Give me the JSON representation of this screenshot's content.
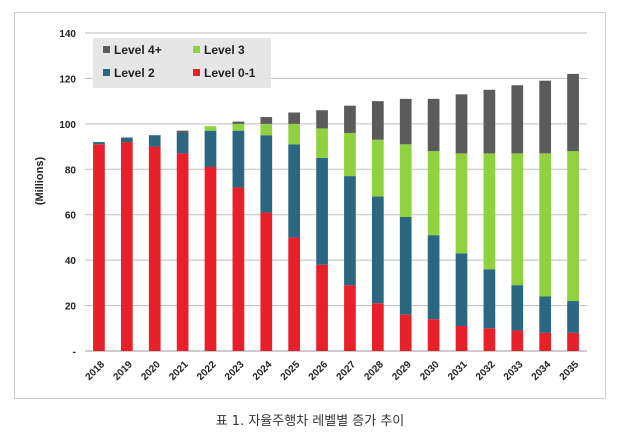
{
  "caption": "표 1. 자율주행차 레벨별 증가 추이",
  "colors": {
    "Level 0-1": "#e8202a",
    "Level 2": "#2b6781",
    "Level 3": "#8fd13f",
    "Level 4+": "#5b5b5b"
  },
  "chart_data": {
    "type": "bar",
    "stacked": true,
    "ylabel": "(Millions)",
    "ylim": [
      0,
      140
    ],
    "yticks": [
      "-",
      "20",
      "40",
      "60",
      "80",
      "100",
      "120",
      "140"
    ],
    "grid": true,
    "legend_position": "top-left",
    "legend_order": [
      "Level 4+",
      "Level 3",
      "Level 2",
      "Level 0-1"
    ],
    "categories": [
      "2018",
      "2019",
      "2020",
      "2021",
      "2022",
      "2023",
      "2024",
      "2025",
      "2026",
      "2027",
      "2028",
      "2029",
      "2030",
      "2031",
      "2032",
      "2033",
      "2034",
      "2035"
    ],
    "series": [
      {
        "name": "Level 0-1",
        "values": [
          91,
          92,
          90,
          87,
          81,
          72,
          61,
          50,
          38,
          29,
          21,
          16,
          14,
          11,
          10,
          9,
          8,
          8
        ]
      },
      {
        "name": "Level 2",
        "values": [
          1,
          2,
          5,
          9,
          16,
          25,
          34,
          41,
          47,
          48,
          47,
          43,
          37,
          32,
          26,
          20,
          16,
          14
        ]
      },
      {
        "name": "Level 3",
        "values": [
          0,
          0,
          0,
          0,
          2,
          3,
          5,
          9,
          13,
          19,
          25,
          32,
          37,
          44,
          51,
          58,
          63,
          66
        ]
      },
      {
        "name": "Level 4+",
        "values": [
          0,
          0,
          0,
          1,
          0,
          1,
          3,
          5,
          8,
          12,
          17,
          20,
          23,
          26,
          28,
          30,
          32,
          34
        ]
      }
    ]
  }
}
